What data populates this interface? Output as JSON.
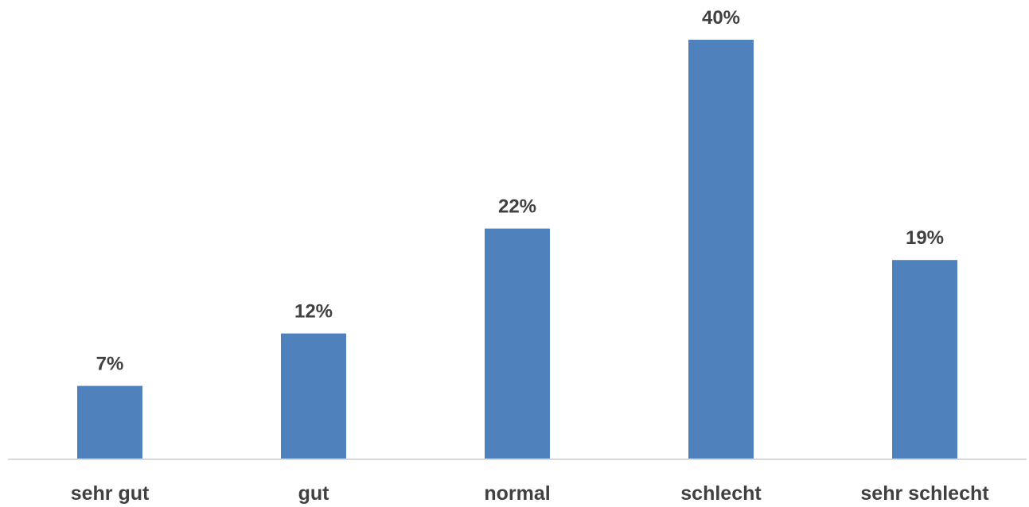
{
  "chart_data": {
    "type": "bar",
    "categories": [
      "sehr gut",
      "gut",
      "normal",
      "schlecht",
      "sehr schlecht"
    ],
    "values": [
      7,
      12,
      22,
      40,
      19
    ],
    "value_labels": [
      "7%",
      "12%",
      "22%",
      "40%",
      "19%"
    ],
    "unit": "%",
    "ylim": [
      0,
      40
    ],
    "grid": false,
    "legend": "none",
    "colors": {
      "bar": "#4f81bd",
      "axis": "#d9d9d9",
      "text": "#404040"
    }
  }
}
